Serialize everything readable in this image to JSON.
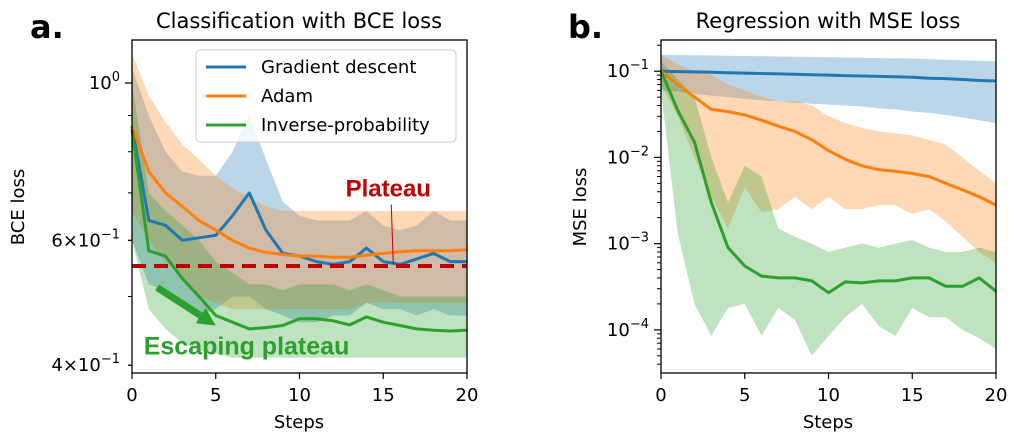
{
  "panels": [
    {
      "letter": "a."
    },
    {
      "letter": "b."
    }
  ],
  "chart_data": [
    {
      "type": "line",
      "title": "Classification with BCE loss",
      "xlabel": "Steps",
      "ylabel": "BCE loss",
      "yscale": "log",
      "xlim": [
        0,
        20
      ],
      "ylim": [
        0.39,
        1.15
      ],
      "xticks": [
        0,
        5,
        10,
        15,
        20
      ],
      "yticks_major": [
        {
          "value": 1.0,
          "base": "10",
          "exp": "0"
        }
      ],
      "yticks_labeled_minor": [
        {
          "value": 0.6,
          "mant": "6",
          "base": "10",
          "exp": "−1"
        },
        {
          "value": 0.4,
          "mant": "4",
          "base": "10",
          "exp": "−1"
        }
      ],
      "yticks_minor": [
        0.4,
        0.5,
        0.6,
        0.7,
        0.8,
        0.9
      ],
      "x": [
        0,
        1,
        2,
        3,
        4,
        5,
        6,
        7,
        8,
        9,
        10,
        11,
        12,
        13,
        14,
        15,
        16,
        17,
        18,
        19,
        20
      ],
      "series": [
        {
          "name": "Gradient descent",
          "color": "#1f77b4",
          "values": [
            0.87,
            0.64,
            0.63,
            0.6,
            0.605,
            0.61,
            0.65,
            0.7,
            0.62,
            0.575,
            0.57,
            0.56,
            0.555,
            0.56,
            0.585,
            0.56,
            0.555,
            0.565,
            0.575,
            0.56,
            0.56
          ],
          "lower": [
            0.6,
            0.52,
            0.51,
            0.49,
            0.47,
            0.48,
            0.5,
            0.5,
            0.48,
            0.47,
            0.46,
            0.46,
            0.47,
            0.47,
            0.49,
            0.48,
            0.48,
            0.47,
            0.48,
            0.47,
            0.47
          ],
          "upper": [
            1.05,
            0.9,
            0.8,
            0.75,
            0.74,
            0.74,
            0.8,
            0.9,
            0.78,
            0.68,
            0.65,
            0.64,
            0.64,
            0.64,
            0.66,
            0.63,
            0.62,
            0.63,
            0.66,
            0.64,
            0.64
          ]
        },
        {
          "name": "Adam",
          "color": "#ff7f0e",
          "values": [
            0.87,
            0.75,
            0.7,
            0.67,
            0.64,
            0.62,
            0.6,
            0.585,
            0.577,
            0.573,
            0.57,
            0.57,
            0.568,
            0.568,
            0.572,
            0.575,
            0.578,
            0.58,
            0.58,
            0.58,
            0.582
          ],
          "lower": [
            0.66,
            0.6,
            0.56,
            0.53,
            0.5,
            0.49,
            0.48,
            0.48,
            0.48,
            0.48,
            0.48,
            0.48,
            0.48,
            0.48,
            0.49,
            0.49,
            0.49,
            0.49,
            0.49,
            0.49,
            0.49
          ],
          "upper": [
            1.1,
            0.96,
            0.88,
            0.82,
            0.78,
            0.74,
            0.71,
            0.69,
            0.67,
            0.66,
            0.66,
            0.66,
            0.66,
            0.66,
            0.66,
            0.66,
            0.66,
            0.66,
            0.66,
            0.66,
            0.66
          ]
        },
        {
          "name": "Inverse-probability",
          "color": "#2ca02c",
          "values": [
            0.86,
            0.58,
            0.57,
            0.53,
            0.5,
            0.47,
            0.46,
            0.45,
            0.452,
            0.455,
            0.465,
            0.465,
            0.462,
            0.456,
            0.468,
            0.46,
            0.455,
            0.45,
            0.448,
            0.447,
            0.448
          ],
          "lower": [
            0.6,
            0.48,
            0.45,
            0.43,
            0.42,
            0.415,
            0.41,
            0.41,
            0.41,
            0.41,
            0.41,
            0.41,
            0.41,
            0.41,
            0.41,
            0.41,
            0.41,
            0.41,
            0.41,
            0.41,
            0.41
          ],
          "upper": [
            1.0,
            0.7,
            0.66,
            0.63,
            0.6,
            0.56,
            0.54,
            0.52,
            0.52,
            0.51,
            0.52,
            0.52,
            0.52,
            0.51,
            0.52,
            0.51,
            0.5,
            0.5,
            0.5,
            0.5,
            0.5
          ]
        }
      ],
      "plateau_level": 0.552,
      "annotations": [
        {
          "text": "Plateau",
          "color": "#c00000",
          "text_x": 15.3,
          "text_y": 0.71,
          "arrow_to_x": 15.6,
          "arrow_to_y": 0.555
        },
        {
          "text": "Escaping plateau",
          "color": "#2ca02c",
          "text_x": 0.7,
          "text_y": 0.425,
          "arrow_from_x": 1.5,
          "arrow_from_y": 0.515,
          "arrow_to_x": 5.0,
          "arrow_to_y": 0.455
        }
      ],
      "legend": {
        "location": "top-right"
      }
    },
    {
      "type": "line",
      "title": "Regression with MSE loss",
      "xlabel": "Steps",
      "ylabel": "MSE loss",
      "yscale": "log",
      "xlim": [
        0,
        20
      ],
      "ylim": [
        3.16e-05,
        0.23
      ],
      "xticks": [
        0,
        5,
        10,
        15,
        20
      ],
      "yticks_major": [
        {
          "value": 0.1,
          "base": "10",
          "exp": "−1"
        },
        {
          "value": 0.01,
          "base": "10",
          "exp": "−2"
        },
        {
          "value": 0.001,
          "base": "10",
          "exp": "−3"
        },
        {
          "value": 0.0001,
          "base": "10",
          "exp": "−4"
        }
      ],
      "x": [
        0,
        1,
        2,
        3,
        4,
        5,
        6,
        7,
        8,
        9,
        10,
        11,
        12,
        13,
        14,
        15,
        16,
        17,
        18,
        19,
        20
      ],
      "series": [
        {
          "name": "Gradient descent",
          "color": "#1f77b4",
          "values": [
            0.1,
            0.099,
            0.098,
            0.097,
            0.096,
            0.095,
            0.094,
            0.093,
            0.092,
            0.091,
            0.09,
            0.089,
            0.088,
            0.087,
            0.086,
            0.085,
            0.083,
            0.082,
            0.08,
            0.078,
            0.077
          ],
          "lower": [
            0.06,
            0.058,
            0.055,
            0.052,
            0.05,
            0.048,
            0.046,
            0.045,
            0.043,
            0.042,
            0.041,
            0.04,
            0.039,
            0.037,
            0.036,
            0.034,
            0.033,
            0.031,
            0.029,
            0.027,
            0.025
          ],
          "upper": [
            0.155,
            0.154,
            0.153,
            0.152,
            0.151,
            0.15,
            0.149,
            0.148,
            0.147,
            0.146,
            0.145,
            0.144,
            0.143,
            0.142,
            0.141,
            0.14,
            0.138,
            0.136,
            0.134,
            0.132,
            0.13
          ]
        },
        {
          "name": "Adam",
          "color": "#ff7f0e",
          "values": [
            0.1,
            0.07,
            0.05,
            0.036,
            0.034,
            0.031,
            0.027,
            0.023,
            0.02,
            0.016,
            0.012,
            0.0095,
            0.008,
            0.0072,
            0.0069,
            0.0065,
            0.006,
            0.005,
            0.0042,
            0.0035,
            0.0028
          ],
          "lower": [
            0.07,
            0.03,
            0.01,
            0.0035,
            0.0015,
            0.0045,
            0.0023,
            0.0025,
            0.0035,
            0.0025,
            0.0035,
            0.0025,
            0.0025,
            0.0028,
            0.0028,
            0.0022,
            0.0025,
            0.0018,
            0.0012,
            0.0008,
            0.0006
          ],
          "upper": [
            0.155,
            0.12,
            0.1,
            0.09,
            0.07,
            0.06,
            0.05,
            0.045,
            0.045,
            0.04,
            0.03,
            0.025,
            0.022,
            0.02,
            0.019,
            0.018,
            0.016,
            0.014,
            0.01,
            0.007,
            0.005
          ]
        },
        {
          "name": "Inverse-probability",
          "color": "#2ca02c",
          "values": [
            0.1,
            0.035,
            0.015,
            0.003,
            0.0009,
            0.00055,
            0.00042,
            0.0004,
            0.0004,
            0.00037,
            0.00027,
            0.00036,
            0.00035,
            0.00037,
            0.00037,
            0.0004,
            0.0004,
            0.00032,
            0.00032,
            0.0004,
            0.00028
          ],
          "lower": [
            0.06,
            0.0013,
            0.0002,
            8.5e-05,
            0.00018,
            0.0002,
            8.5e-05,
            0.00018,
            0.00013,
            5e-05,
            8.5e-05,
            0.00014,
            0.0002,
            0.00011,
            8.5e-05,
            0.00018,
            0.00014,
            0.00014,
            0.0001,
            8e-05,
            6e-05
          ],
          "upper": [
            0.13,
            0.08,
            0.05,
            0.01,
            0.003,
            0.008,
            0.006,
            0.0015,
            0.0012,
            0.001,
            0.0008,
            0.0009,
            0.001,
            0.0009,
            0.001,
            0.0011,
            0.0009,
            0.0008,
            0.0008,
            0.0009,
            0.0008
          ]
        }
      ]
    }
  ]
}
